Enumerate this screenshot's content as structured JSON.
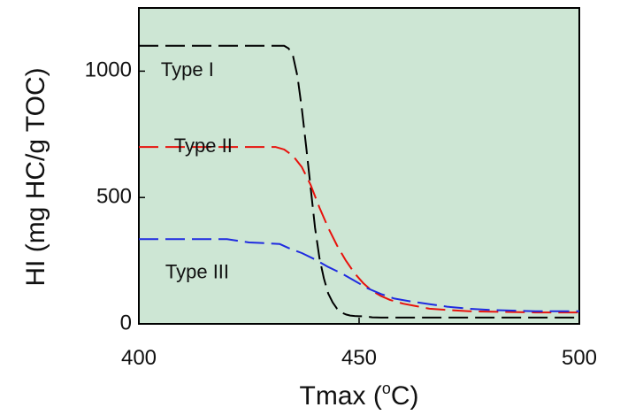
{
  "chart_data": {
    "type": "line",
    "title": "",
    "xlabel": "Tmax (°C)",
    "xlabel_parts": {
      "before": "Tmax (",
      "sup": "o",
      "after": "C)"
    },
    "ylabel": "HI (mg HC/g TOC)",
    "xlim": [
      400,
      500
    ],
    "ylim": [
      0,
      1250
    ],
    "xticks": [
      400,
      450,
      500
    ],
    "yticks": [
      0,
      500,
      1000
    ],
    "grid": false,
    "legend": "none",
    "plot_background": "#cde6d4",
    "series": [
      {
        "name": "Type I",
        "color": "#000000",
        "dash": "dashed",
        "label_at": {
          "x": 405,
          "y": 1000
        },
        "x": [
          400,
          433,
          434,
          435,
          436,
          437,
          438,
          439,
          440,
          441,
          442,
          443,
          444,
          445,
          446,
          447,
          448,
          449,
          450,
          451,
          452,
          453,
          455,
          460,
          470,
          480,
          490,
          500
        ],
        "y": [
          1100,
          1100,
          1090,
          1060,
          980,
          850,
          700,
          540,
          380,
          260,
          180,
          120,
          85,
          60,
          45,
          37,
          33,
          31,
          30,
          30,
          28,
          26,
          25,
          25,
          25,
          25,
          25,
          25
        ]
      },
      {
        "name": "Type II",
        "color": "#e8120c",
        "dash": "dashed",
        "label_at": {
          "x": 408,
          "y": 700
        },
        "x": [
          400,
          431,
          433,
          435,
          437,
          439,
          441,
          443,
          445,
          447,
          449,
          451,
          453,
          455,
          457,
          460,
          463,
          466,
          470,
          475,
          480,
          490,
          500
        ],
        "y": [
          700,
          700,
          690,
          665,
          620,
          550,
          460,
          380,
          310,
          250,
          200,
          160,
          130,
          110,
          95,
          80,
          70,
          60,
          55,
          50,
          48,
          45,
          45
        ]
      },
      {
        "name": "Type III",
        "color": "#1f2be0",
        "dash": "dashed",
        "label_at": {
          "x": 406,
          "y": 200
        },
        "x": [
          400,
          420,
          425,
          428,
          432,
          434,
          437,
          440,
          443,
          446,
          449,
          452,
          455,
          458,
          462,
          466,
          470,
          475,
          480,
          490,
          500
        ],
        "y": [
          335,
          335,
          322,
          320,
          316,
          300,
          280,
          255,
          225,
          200,
          170,
          140,
          118,
          100,
          88,
          78,
          68,
          60,
          55,
          50,
          50
        ]
      }
    ]
  }
}
